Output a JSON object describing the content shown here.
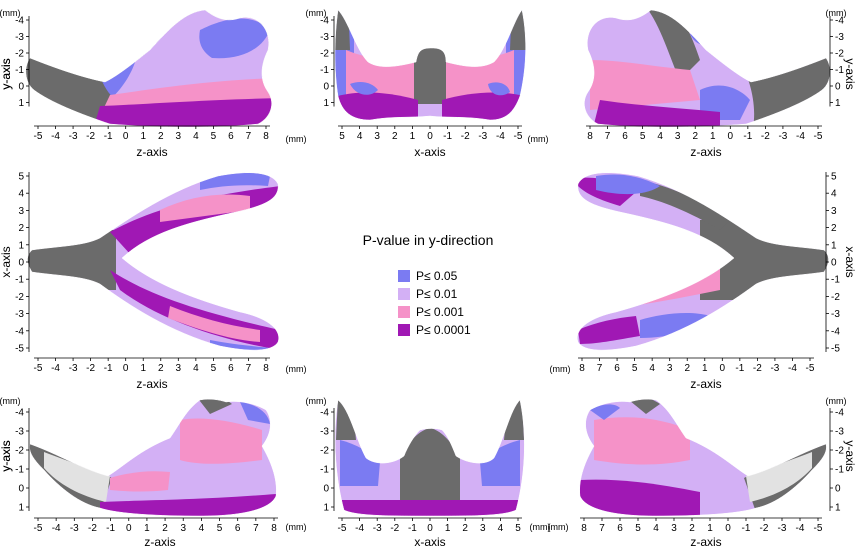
{
  "figure": {
    "title": "P-value in y-direction",
    "legend": [
      {
        "label": "P≤ 0.05",
        "color": "#7b7bf2"
      },
      {
        "label": "P≤ 0.01",
        "color": "#d3b0f5"
      },
      {
        "label": "P≤ 0.001",
        "color": "#f592c8"
      },
      {
        "label": "P≤ 0.0001",
        "color": "#a018b4"
      }
    ],
    "colors": {
      "not_significant": "#6b6b6b",
      "missing": "#e2e2e2",
      "axis": "#000000"
    },
    "units": "(mm)",
    "panels": [
      {
        "id": "top-left",
        "xlabel": "z-axis",
        "ylabel": "y-axis",
        "xticks": [
          "-5",
          "-4",
          "-3",
          "-2",
          "-1",
          "0",
          "1",
          "2",
          "3",
          "4",
          "5",
          "6",
          "7",
          "8"
        ],
        "yticks": [
          "-4",
          "-3",
          "-2",
          "-1",
          "0",
          "1"
        ]
      },
      {
        "id": "top-middle",
        "xlabel": "x-axis",
        "ylabel": "y-axis",
        "xticks": [
          "5",
          "4",
          "3",
          "2",
          "1",
          "0",
          "-1",
          "-2",
          "-3",
          "-4",
          "-5"
        ],
        "yticks": [
          "-4",
          "-3",
          "-2",
          "-1",
          "0",
          "1"
        ]
      },
      {
        "id": "top-right",
        "xlabel": "z-axis",
        "ylabel": "y-axis",
        "xticks": [
          "8",
          "7",
          "6",
          "5",
          "4",
          "3",
          "2",
          "1",
          "0",
          "-1",
          "-2",
          "-3",
          "-4",
          "-5"
        ],
        "yticks": [
          "-4",
          "-3",
          "-2",
          "-1",
          "0",
          "1"
        ]
      },
      {
        "id": "middle-left",
        "xlabel": "z-axis",
        "ylabel": "x-axis",
        "xticks": [
          "-5",
          "-4",
          "-3",
          "-2",
          "-1",
          "0",
          "1",
          "2",
          "3",
          "4",
          "5",
          "6",
          "7",
          "8"
        ],
        "yticks": [
          "5",
          "4",
          "3",
          "2",
          "1",
          "0",
          "-1",
          "-2",
          "-3",
          "-4",
          "-5"
        ]
      },
      {
        "id": "middle-right",
        "xlabel": "z-axis",
        "ylabel": "x-axis",
        "xticks": [
          "8",
          "7",
          "6",
          "5",
          "4",
          "3",
          "2",
          "1",
          "0",
          "-1",
          "-2",
          "-3",
          "-4",
          "-5"
        ],
        "yticks": [
          "5",
          "4",
          "3",
          "2",
          "1",
          "0",
          "-1",
          "-2",
          "-3",
          "-4",
          "-5"
        ]
      },
      {
        "id": "bottom-left",
        "xlabel": "z-axis",
        "ylabel": "y-axis",
        "xticks": [
          "-5",
          "-4",
          "-3",
          "-2",
          "-1",
          "0",
          "1",
          "2",
          "3",
          "4",
          "5",
          "6",
          "7",
          "8"
        ],
        "yticks": [
          "-4",
          "-3",
          "-2",
          "-1",
          "0",
          "1"
        ]
      },
      {
        "id": "bottom-middle",
        "xlabel": "x-axis",
        "ylabel": "y-axis",
        "xticks": [
          "-5",
          "-4",
          "-3",
          "-2",
          "-1",
          "0",
          "1",
          "2",
          "3",
          "4",
          "5"
        ],
        "yticks": [
          "-4",
          "-3",
          "-2",
          "-1",
          "0",
          "1"
        ]
      },
      {
        "id": "bottom-right",
        "xlabel": "z-axis",
        "ylabel": "y-axis",
        "xticks": [
          "8",
          "7",
          "6",
          "5",
          "4",
          "3",
          "2",
          "1",
          "0",
          "-1",
          "-2",
          "-3",
          "-4",
          "-5"
        ],
        "yticks": [
          "-4",
          "-3",
          "-2",
          "-1",
          "0",
          "1"
        ]
      }
    ]
  }
}
